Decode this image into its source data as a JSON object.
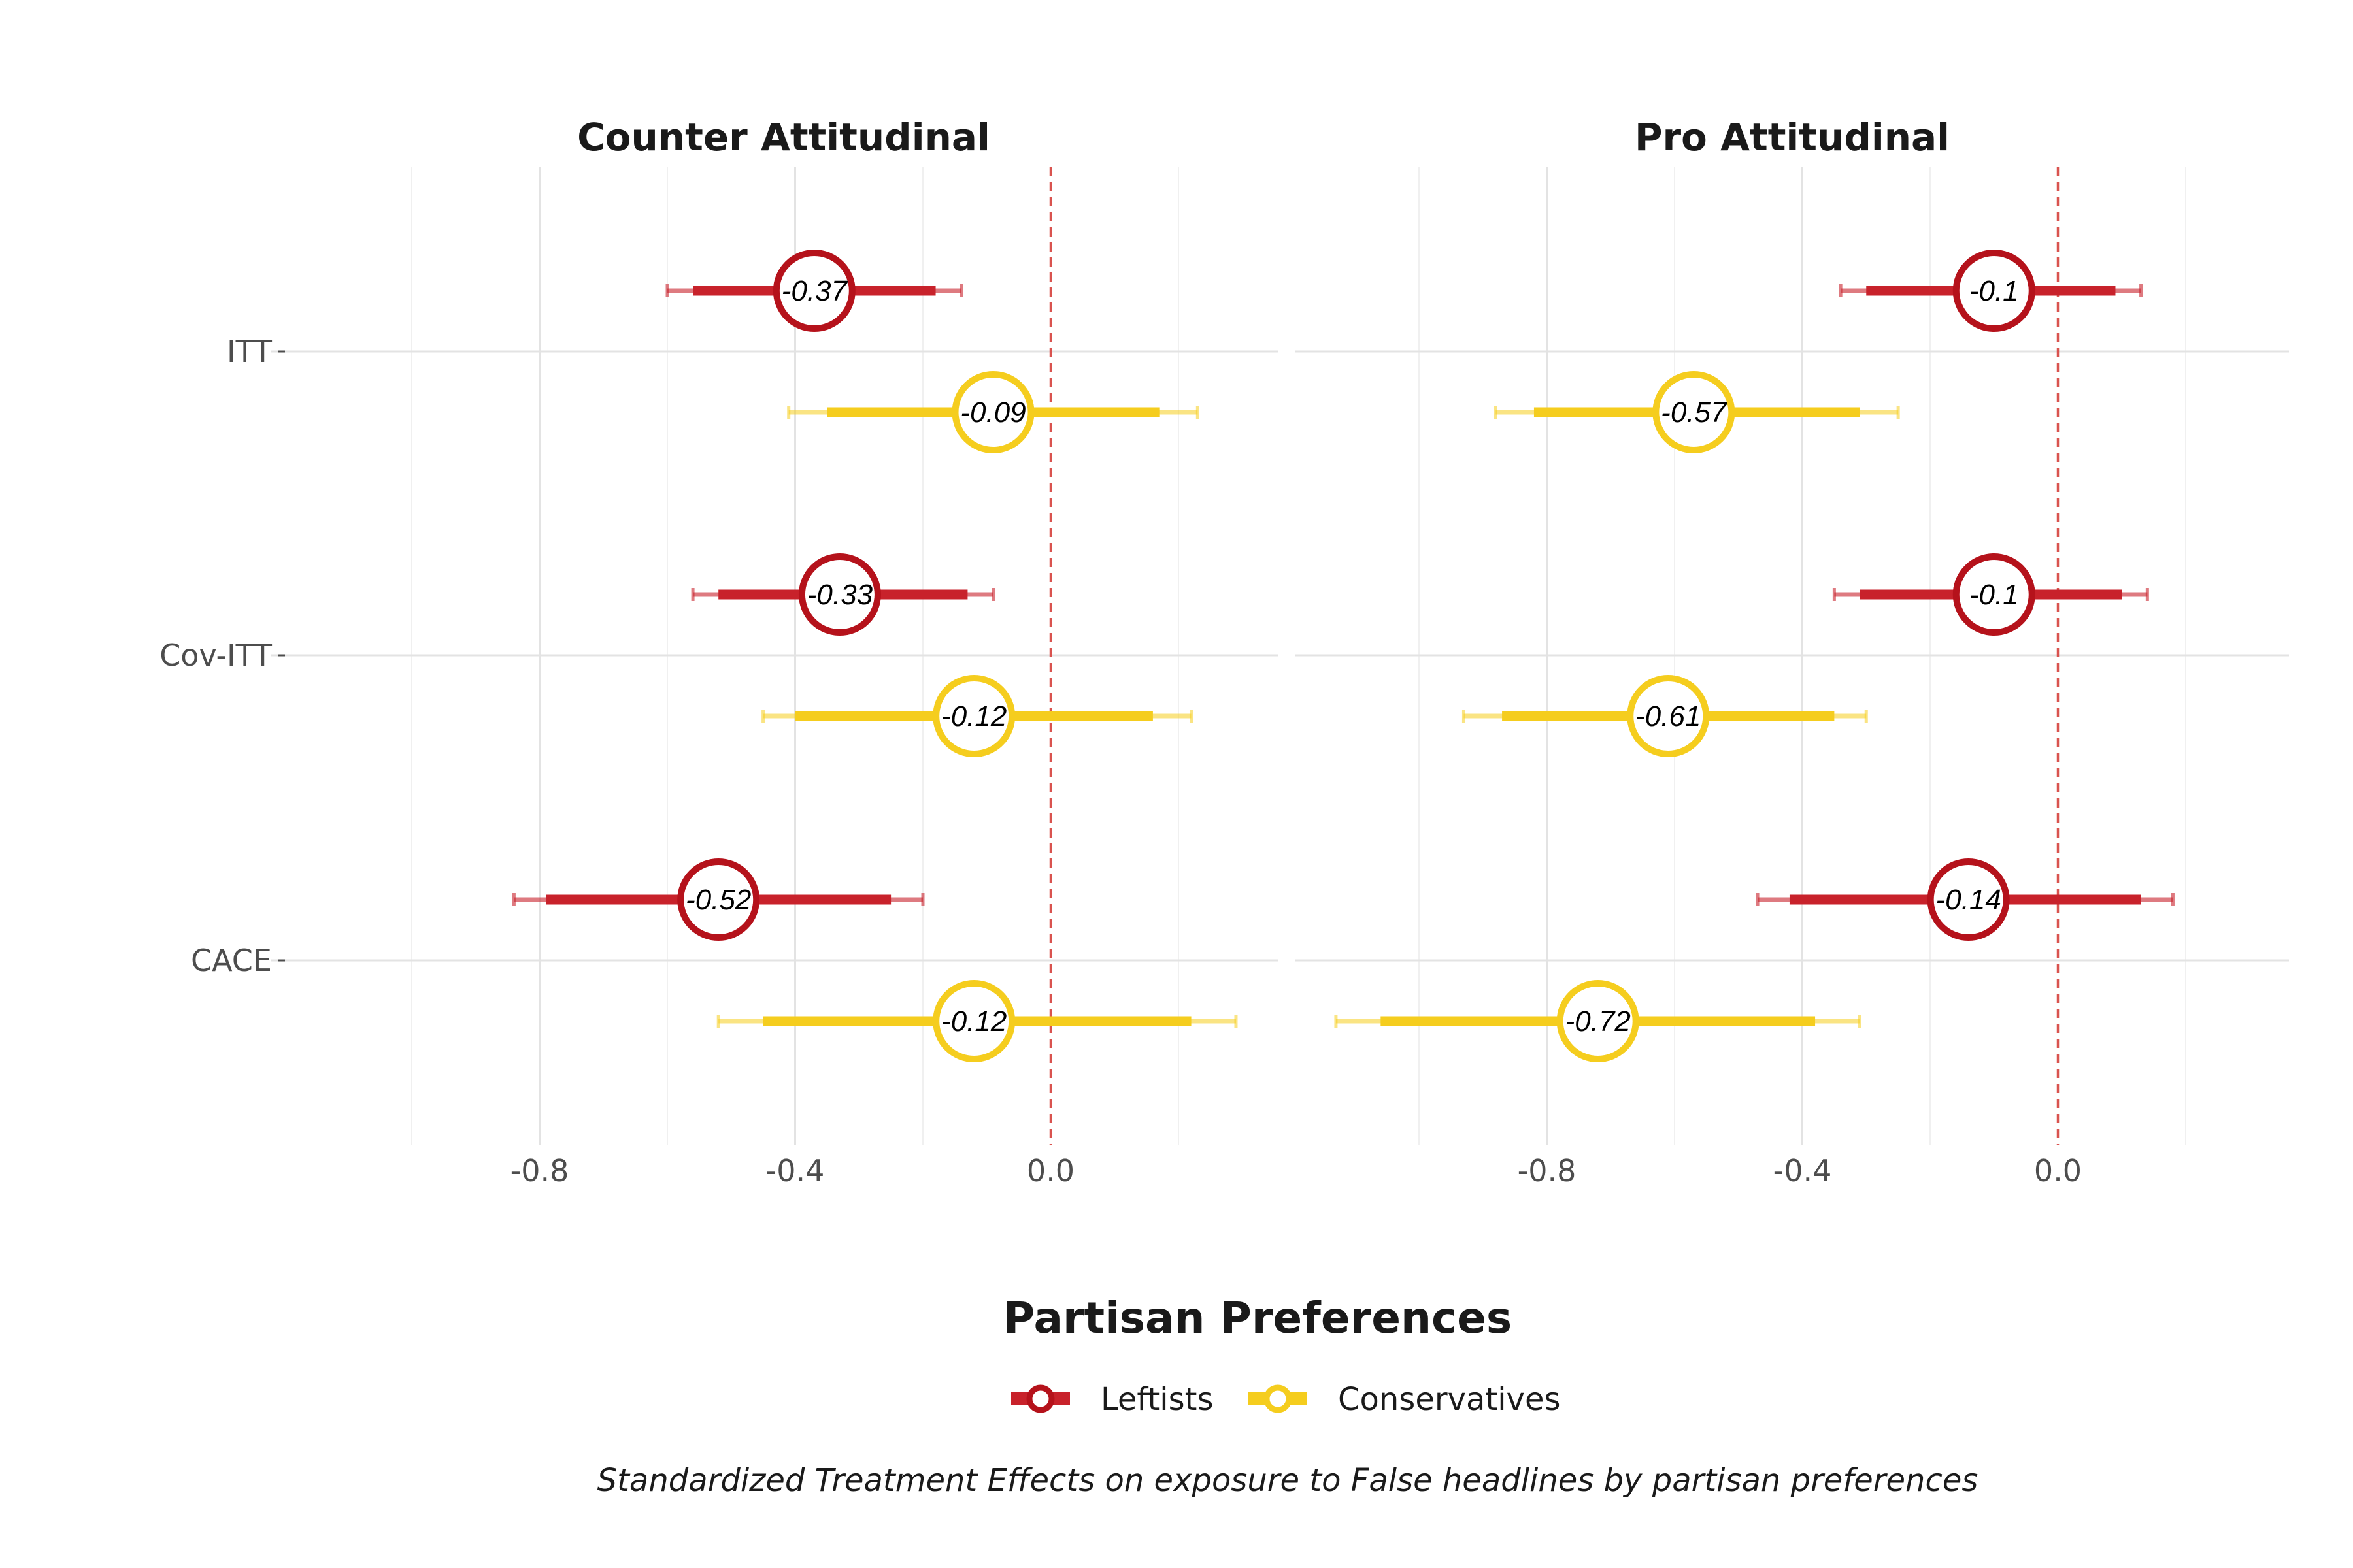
{
  "chart_data": {
    "type": "scatter",
    "subtype": "forest-plot",
    "panels": [
      "Counter Attitudinal",
      "Pro Attitudinal"
    ],
    "categories": [
      "ITT",
      "Cov-ITT",
      "CACE"
    ],
    "x_ticks": [
      "-0.8",
      "-0.4",
      "0.0"
    ],
    "xlim": [
      -1.0,
      0.33
    ],
    "reference_line": 0,
    "legend_title": "Partisan Preferences",
    "legend_position": "bottom",
    "caption": "Standardized Treatment Effects on exposure to False headlines by partisan preferences",
    "series": [
      {
        "name": "Leftists",
        "color": "#b5121b",
        "points": [
          {
            "panel": "Counter Attitudinal",
            "category": "ITT",
            "estimate": -0.37,
            "label": "-0.37",
            "ci_inner": [
              -0.56,
              -0.18
            ],
            "ci_outer": [
              -0.6,
              -0.14
            ]
          },
          {
            "panel": "Counter Attitudinal",
            "category": "Cov-ITT",
            "estimate": -0.33,
            "label": "-0.33",
            "ci_inner": [
              -0.52,
              -0.13
            ],
            "ci_outer": [
              -0.56,
              -0.09
            ]
          },
          {
            "panel": "Counter Attitudinal",
            "category": "CACE",
            "estimate": -0.52,
            "label": "-0.52",
            "ci_inner": [
              -0.79,
              -0.25
            ],
            "ci_outer": [
              -0.84,
              -0.2
            ]
          },
          {
            "panel": "Pro Attitudinal",
            "category": "ITT",
            "estimate": -0.1,
            "label": "-0.1",
            "ci_inner": [
              -0.3,
              0.09
            ],
            "ci_outer": [
              -0.34,
              0.13
            ]
          },
          {
            "panel": "Pro Attitudinal",
            "category": "Cov-ITT",
            "estimate": -0.1,
            "label": "-0.1",
            "ci_inner": [
              -0.31,
              0.1
            ],
            "ci_outer": [
              -0.35,
              0.14
            ]
          },
          {
            "panel": "Pro Attitudinal",
            "category": "CACE",
            "estimate": -0.14,
            "label": "-0.14",
            "ci_inner": [
              -0.42,
              0.13
            ],
            "ci_outer": [
              -0.47,
              0.18
            ]
          }
        ]
      },
      {
        "name": "Conservatives",
        "color": "#f5cd1e",
        "points": [
          {
            "panel": "Counter Attitudinal",
            "category": "ITT",
            "estimate": -0.09,
            "label": "-0.09",
            "ci_inner": [
              -0.35,
              0.17
            ],
            "ci_outer": [
              -0.41,
              0.23
            ]
          },
          {
            "panel": "Counter Attitudinal",
            "category": "Cov-ITT",
            "estimate": -0.12,
            "label": "-0.12",
            "ci_inner": [
              -0.4,
              0.16
            ],
            "ci_outer": [
              -0.45,
              0.22
            ]
          },
          {
            "panel": "Counter Attitudinal",
            "category": "CACE",
            "estimate": -0.12,
            "label": "-0.12",
            "ci_inner": [
              -0.45,
              0.22
            ],
            "ci_outer": [
              -0.52,
              0.29
            ]
          },
          {
            "panel": "Pro Attitudinal",
            "category": "ITT",
            "estimate": -0.57,
            "label": "-0.57",
            "ci_inner": [
              -0.82,
              -0.31
            ],
            "ci_outer": [
              -0.88,
              -0.25
            ]
          },
          {
            "panel": "Pro Attitudinal",
            "category": "Cov-ITT",
            "estimate": -0.61,
            "label": "-0.61",
            "ci_inner": [
              -0.87,
              -0.35
            ],
            "ci_outer": [
              -0.93,
              -0.3
            ]
          },
          {
            "panel": "Pro Attitudinal",
            "category": "CACE",
            "estimate": -0.72,
            "label": "-0.72",
            "ci_inner": [
              -1.06,
              -0.38
            ],
            "ci_outer": [
              -1.13,
              -0.31
            ]
          }
        ]
      }
    ]
  }
}
